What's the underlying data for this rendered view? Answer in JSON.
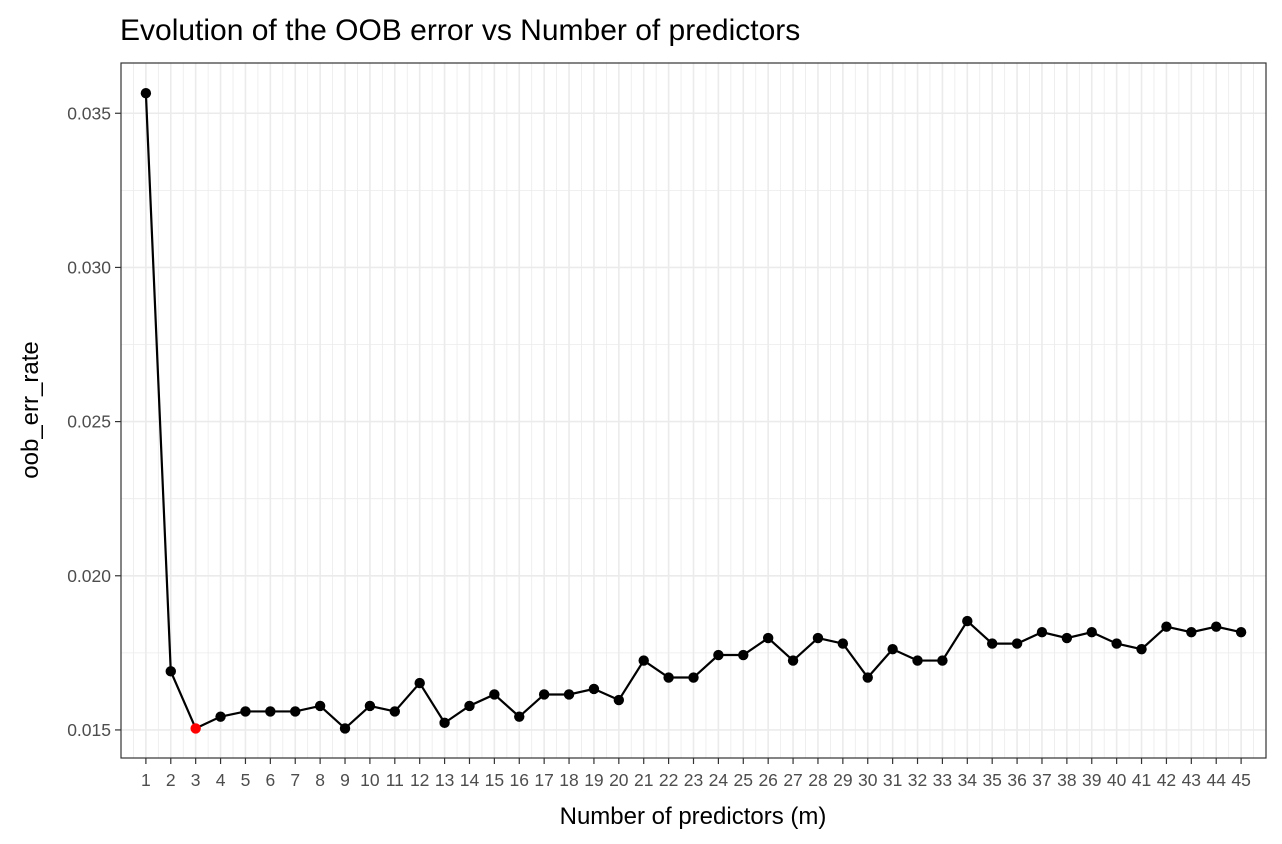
{
  "chart_data": {
    "type": "line",
    "title": "Evolution of the OOB error vs Number of predictors",
    "xlabel": "Number of predictors (m)",
    "ylabel": "oob_err_rate",
    "x": [
      1,
      2,
      3,
      4,
      5,
      6,
      7,
      8,
      9,
      10,
      11,
      12,
      13,
      14,
      15,
      16,
      17,
      18,
      19,
      20,
      21,
      22,
      23,
      24,
      25,
      26,
      27,
      28,
      29,
      30,
      31,
      32,
      33,
      34,
      35,
      36,
      37,
      38,
      39,
      40,
      41,
      42,
      43,
      44,
      45
    ],
    "y": [
      0.03565,
      0.0169,
      0.01505,
      0.01543,
      0.0156,
      0.0156,
      0.0156,
      0.01578,
      0.01505,
      0.01578,
      0.0156,
      0.01652,
      0.01523,
      0.01578,
      0.01615,
      0.01543,
      0.01615,
      0.01615,
      0.01633,
      0.01597,
      0.01725,
      0.0167,
      0.0167,
      0.01743,
      0.01743,
      0.01798,
      0.01725,
      0.01798,
      0.0178,
      0.0167,
      0.01762,
      0.01725,
      0.01725,
      0.01853,
      0.0178,
      0.0178,
      0.01817,
      0.01798,
      0.01817,
      0.0178,
      0.01762,
      0.01835,
      0.01817,
      0.01835,
      0.01817
    ],
    "highlight": {
      "x": 3,
      "color": "#ff0000"
    },
    "point_color": "#000000",
    "line_color": "#000000",
    "xlim": [
      0,
      46
    ],
    "ylim": [
      0.01409,
      0.03663
    ],
    "y_ticks": [
      0.015,
      0.02,
      0.025,
      0.03,
      0.035
    ],
    "y_tick_labels": [
      "0.015",
      "0.020",
      "0.025",
      "0.030",
      "0.035"
    ],
    "grid": true,
    "legend": "none"
  }
}
